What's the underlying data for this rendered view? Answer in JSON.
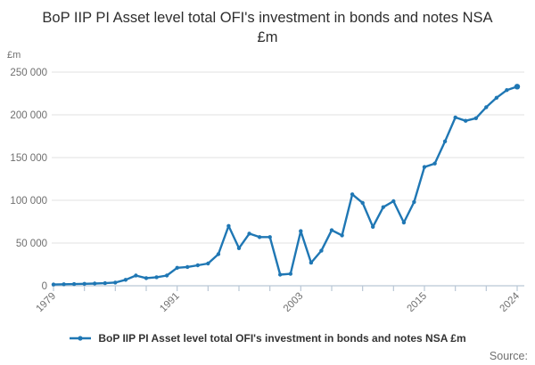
{
  "title": "BoP IIP PI Asset level total OFI's investment in bonds and notes NSA £m",
  "y_axis": {
    "unit_label": "£m",
    "tick_labels": [
      "0",
      "50 000",
      "100 000",
      "150 000",
      "200 000",
      "250 000"
    ],
    "tick_values": [
      0,
      50000,
      100000,
      150000,
      200000,
      250000
    ]
  },
  "x_axis": {
    "labeled_ticks": [
      1979,
      1991,
      2003,
      2015,
      2024
    ],
    "minor_tick_step_years": 3
  },
  "legend": {
    "marker": "line-dot",
    "label": "BoP IIP PI Asset level total OFI's investment in bonds and notes NSA £m"
  },
  "source_label": "Source:",
  "colors": {
    "line": "#1f77b4",
    "grid": "#e2e2e2",
    "axis": "#b9c7d5",
    "tick_text": "#6f6f6f",
    "title_text": "#2e2e2e"
  },
  "chart_data": {
    "type": "line",
    "title": "BoP IIP PI Asset level total OFI's investment in bonds and notes NSA £m",
    "xlabel": "",
    "ylabel": "£m",
    "ylim": [
      0,
      250000
    ],
    "grid": "horizontal",
    "legend_position": "bottom",
    "x": [
      1979,
      1980,
      1981,
      1982,
      1983,
      1984,
      1985,
      1986,
      1987,
      1988,
      1989,
      1990,
      1991,
      1992,
      1993,
      1994,
      1995,
      1996,
      1997,
      1998,
      1999,
      2000,
      2001,
      2002,
      2003,
      2004,
      2005,
      2006,
      2007,
      2008,
      2009,
      2010,
      2011,
      2012,
      2013,
      2014,
      2015,
      2016,
      2017,
      2018,
      2019,
      2020,
      2021,
      2022,
      2023,
      2024
    ],
    "series": [
      {
        "name": "BoP IIP PI Asset level total OFI's investment in bonds and notes NSA £m",
        "values": [
          1500,
          1800,
          2000,
          2300,
          2600,
          3000,
          3800,
          7000,
          12000,
          9000,
          10000,
          12000,
          21000,
          22000,
          24000,
          26000,
          37000,
          70000,
          44000,
          61000,
          57000,
          57000,
          13000,
          14000,
          64000,
          27000,
          41000,
          65000,
          59000,
          107000,
          97000,
          69000,
          92000,
          99000,
          74000,
          98000,
          139000,
          143000,
          169000,
          197000,
          193000,
          196000,
          209000,
          220000,
          229000,
          233000
        ]
      }
    ]
  }
}
